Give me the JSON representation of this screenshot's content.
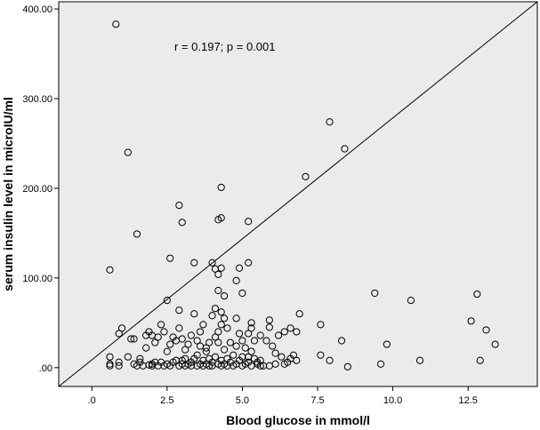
{
  "chart_data": {
    "type": "scatter",
    "title": "",
    "xlabel": "Blood glucose in mmol/l",
    "ylabel": "serum insulin level in microIU/ml",
    "xlim": [
      -1.1,
      14.8
    ],
    "ylim": [
      -21,
      408
    ],
    "xticks": [
      0,
      2.5,
      5,
      7.5,
      10,
      12.5
    ],
    "xtick_labels": [
      ".0",
      "2.5",
      "5.0",
      "7.5",
      "10.0",
      "12.5"
    ],
    "yticks": [
      0,
      100,
      200,
      300,
      400
    ],
    "ytick_labels": [
      ".00",
      "100.00",
      "200.00",
      "300.00",
      "400.00"
    ],
    "annotation": "r = 0.197; p = 0.001",
    "reference_line": {
      "x": [
        -1.1,
        14.8
      ],
      "y": [
        -21,
        408
      ]
    },
    "grid": false,
    "legend": "none",
    "colors": {
      "plot_background": "#ebebeb",
      "marker": "#000000",
      "line": "#000000"
    },
    "points": [
      [
        0.8,
        383
      ],
      [
        1.2,
        240
      ],
      [
        1.5,
        149
      ],
      [
        0.6,
        109
      ],
      [
        2.5,
        75
      ],
      [
        2.6,
        122
      ],
      [
        2.9,
        181
      ],
      [
        3.0,
        162
      ],
      [
        3.4,
        117
      ],
      [
        4.0,
        117
      ],
      [
        4.3,
        201
      ],
      [
        4.2,
        165
      ],
      [
        4.3,
        167
      ],
      [
        4.1,
        110
      ],
      [
        4.3,
        111
      ],
      [
        4.2,
        104
      ],
      [
        4.2,
        86
      ],
      [
        4.4,
        80
      ],
      [
        4.8,
        97
      ],
      [
        4.9,
        111
      ],
      [
        5.0,
        83
      ],
      [
        5.2,
        163
      ],
      [
        5.2,
        117
      ],
      [
        7.1,
        213
      ],
      [
        7.9,
        274
      ],
      [
        8.4,
        244
      ],
      [
        9.4,
        83
      ],
      [
        10.6,
        75
      ],
      [
        12.8,
        82
      ],
      [
        12.6,
        52
      ],
      [
        13.1,
        42
      ],
      [
        13.4,
        26
      ],
      [
        12.9,
        8
      ],
      [
        10.9,
        8
      ],
      [
        9.8,
        26
      ],
      [
        9.6,
        4
      ],
      [
        8.5,
        1
      ],
      [
        8.3,
        30
      ],
      [
        7.9,
        8
      ],
      [
        7.6,
        14
      ],
      [
        7.6,
        48
      ],
      [
        6.9,
        60
      ],
      [
        6.8,
        40
      ],
      [
        6.6,
        44
      ],
      [
        6.4,
        40
      ],
      [
        6.2,
        36
      ],
      [
        5.9,
        53
      ],
      [
        5.9,
        45
      ],
      [
        5.3,
        50
      ],
      [
        5.3,
        44
      ],
      [
        5.2,
        38
      ],
      [
        5.4,
        30
      ],
      [
        5.6,
        36
      ],
      [
        5.8,
        30
      ],
      [
        6.0,
        24
      ],
      [
        6.1,
        16
      ],
      [
        6.3,
        12
      ],
      [
        6.5,
        6
      ],
      [
        6.6,
        10
      ],
      [
        6.8,
        8
      ],
      [
        6.7,
        14
      ],
      [
        6.1,
        4
      ],
      [
        5.9,
        2
      ],
      [
        5.7,
        2
      ],
      [
        5.5,
        4
      ],
      [
        5.6,
        8
      ],
      [
        5.3,
        18
      ],
      [
        5.1,
        22
      ],
      [
        5.0,
        30
      ],
      [
        4.9,
        38
      ],
      [
        4.8,
        55
      ],
      [
        4.6,
        28
      ],
      [
        4.5,
        44
      ],
      [
        4.4,
        55
      ],
      [
        4.3,
        62
      ],
      [
        4.3,
        48
      ],
      [
        4.2,
        40
      ],
      [
        4.1,
        66
      ],
      [
        4.0,
        58
      ],
      [
        4.1,
        34
      ],
      [
        3.9,
        28
      ],
      [
        3.8,
        22
      ],
      [
        3.7,
        48
      ],
      [
        3.6,
        40
      ],
      [
        3.5,
        30
      ],
      [
        3.4,
        60
      ],
      [
        3.3,
        36
      ],
      [
        3.2,
        26
      ],
      [
        3.1,
        20
      ],
      [
        3.0,
        32
      ],
      [
        2.9,
        44
      ],
      [
        2.9,
        64
      ],
      [
        2.8,
        30
      ],
      [
        2.7,
        34
      ],
      [
        2.6,
        26
      ],
      [
        2.5,
        18
      ],
      [
        2.4,
        40
      ],
      [
        2.3,
        48
      ],
      [
        2.2,
        34
      ],
      [
        2.1,
        28
      ],
      [
        2.0,
        36
      ],
      [
        1.9,
        40
      ],
      [
        1.8,
        36
      ],
      [
        1.8,
        22
      ],
      [
        1.6,
        10
      ],
      [
        1.4,
        32
      ],
      [
        1.3,
        32
      ],
      [
        1.2,
        12
      ],
      [
        1.0,
        44
      ],
      [
        0.9,
        38
      ],
      [
        0.6,
        12
      ],
      [
        0.6,
        2
      ],
      [
        0.6,
        4
      ],
      [
        0.9,
        2
      ],
      [
        0.9,
        6
      ],
      [
        1.4,
        4
      ],
      [
        1.5,
        2
      ],
      [
        1.6,
        6
      ],
      [
        1.7,
        2
      ],
      [
        1.9,
        3
      ],
      [
        2.0,
        2
      ],
      [
        2.1,
        6
      ],
      [
        2.2,
        2
      ],
      [
        2.4,
        2
      ],
      [
        2.5,
        4
      ],
      [
        2.6,
        2
      ],
      [
        2.7,
        6
      ],
      [
        2.8,
        8
      ],
      [
        2.9,
        2
      ],
      [
        3.0,
        4
      ],
      [
        3.0,
        8
      ],
      [
        3.1,
        2
      ],
      [
        3.1,
        10
      ],
      [
        3.2,
        4
      ],
      [
        3.3,
        2
      ],
      [
        3.3,
        6
      ],
      [
        3.4,
        10
      ],
      [
        3.5,
        2
      ],
      [
        3.6,
        4
      ],
      [
        3.7,
        2
      ],
      [
        3.7,
        8
      ],
      [
        3.8,
        4
      ],
      [
        3.9,
        2
      ],
      [
        3.9,
        10
      ],
      [
        4.0,
        6
      ],
      [
        4.0,
        2
      ],
      [
        4.1,
        12
      ],
      [
        4.2,
        4
      ],
      [
        4.3,
        2
      ],
      [
        4.3,
        8
      ],
      [
        4.4,
        4
      ],
      [
        4.5,
        2
      ],
      [
        4.5,
        10
      ],
      [
        4.6,
        6
      ],
      [
        4.7,
        2
      ],
      [
        4.7,
        14
      ],
      [
        4.8,
        4
      ],
      [
        4.9,
        8
      ],
      [
        5.0,
        2
      ],
      [
        5.0,
        12
      ],
      [
        5.1,
        4
      ],
      [
        5.2,
        6
      ],
      [
        5.3,
        2
      ],
      [
        5.4,
        10
      ],
      [
        5.5,
        6
      ],
      [
        2.0,
        4
      ],
      [
        2.3,
        6
      ],
      [
        3.5,
        14
      ],
      [
        3.8,
        18
      ],
      [
        4.4,
        20
      ],
      [
        4.8,
        24
      ],
      [
        5.2,
        12
      ],
      [
        5.6,
        2
      ],
      [
        6.4,
        4
      ],
      [
        3.6,
        24
      ],
      [
        4.2,
        28
      ]
    ]
  }
}
